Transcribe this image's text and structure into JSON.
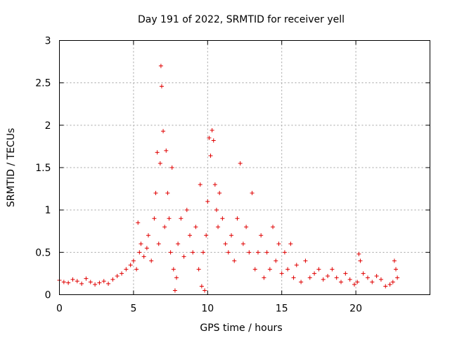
{
  "chart_data": {
    "type": "scatter",
    "title": "Day 191 of 2022, SRMTID for receiver yell",
    "xlabel": "GPS time / hours",
    "ylabel": "SRMTID / TECUs",
    "xlim": [
      0,
      25
    ],
    "ylim": [
      0,
      3
    ],
    "x_ticks": [
      0,
      5,
      10,
      15,
      20
    ],
    "x_tick_labels": [
      "0",
      "5",
      "10",
      "15",
      "20"
    ],
    "y_ticks": [
      0,
      0.5,
      1,
      1.5,
      2,
      2.5,
      3
    ],
    "y_tick_labels": [
      "0",
      "0.5",
      "1",
      "1.5",
      "2",
      "2.5",
      "3"
    ],
    "grid": true,
    "marker": "+",
    "series": [
      {
        "name": "SRMTID",
        "color": "#e00000",
        "x": [
          0.0,
          0.3,
          0.6,
          0.9,
          1.2,
          1.5,
          1.8,
          2.1,
          2.4,
          2.7,
          3.0,
          3.3,
          3.6,
          3.9,
          4.2,
          4.5,
          4.8,
          5.0,
          5.2,
          5.3,
          5.4,
          5.5,
          5.7,
          5.9,
          6.0,
          6.2,
          6.4,
          6.5,
          6.6,
          6.7,
          6.8,
          6.85,
          6.9,
          7.0,
          7.1,
          7.2,
          7.3,
          7.4,
          7.5,
          7.6,
          7.7,
          7.8,
          7.9,
          8.0,
          8.2,
          8.4,
          8.6,
          8.8,
          9.0,
          9.2,
          9.4,
          9.5,
          9.6,
          9.7,
          9.8,
          9.9,
          10.0,
          10.1,
          10.2,
          10.3,
          10.4,
          10.5,
          10.6,
          10.7,
          10.8,
          11.0,
          11.2,
          11.4,
          11.6,
          11.8,
          12.0,
          12.2,
          12.4,
          12.6,
          12.8,
          13.0,
          13.2,
          13.4,
          13.6,
          13.8,
          14.0,
          14.2,
          14.4,
          14.6,
          14.8,
          15.0,
          15.2,
          15.4,
          15.6,
          15.8,
          16.0,
          16.3,
          16.6,
          16.9,
          17.2,
          17.5,
          17.8,
          18.1,
          18.4,
          18.7,
          19.0,
          19.3,
          19.6,
          19.9,
          20.1,
          20.2,
          20.3,
          20.5,
          20.8,
          21.1,
          21.4,
          21.7,
          22.0,
          22.3,
          22.5,
          22.6,
          22.7,
          22.8
        ],
        "y": [
          0.17,
          0.15,
          0.14,
          0.18,
          0.16,
          0.13,
          0.19,
          0.15,
          0.12,
          0.14,
          0.16,
          0.13,
          0.18,
          0.22,
          0.25,
          0.3,
          0.35,
          0.4,
          0.3,
          0.85,
          0.5,
          0.6,
          0.45,
          0.55,
          0.7,
          0.4,
          0.9,
          1.2,
          1.68,
          0.6,
          1.55,
          2.7,
          2.46,
          1.93,
          0.8,
          1.7,
          1.2,
          0.9,
          0.5,
          1.5,
          0.3,
          0.05,
          0.2,
          0.6,
          0.9,
          0.45,
          1.0,
          0.7,
          0.5,
          0.8,
          0.3,
          1.3,
          0.1,
          0.5,
          0.05,
          0.7,
          1.1,
          1.85,
          1.64,
          1.94,
          1.82,
          1.3,
          1.0,
          0.8,
          1.2,
          0.9,
          0.6,
          0.5,
          0.7,
          0.4,
          0.9,
          1.55,
          0.6,
          0.8,
          0.5,
          1.2,
          0.3,
          0.5,
          0.7,
          0.2,
          0.5,
          0.3,
          0.8,
          0.4,
          0.6,
          0.25,
          0.5,
          0.3,
          0.6,
          0.2,
          0.35,
          0.15,
          0.4,
          0.2,
          0.25,
          0.3,
          0.18,
          0.22,
          0.3,
          0.2,
          0.15,
          0.25,
          0.18,
          0.12,
          0.15,
          0.48,
          0.4,
          0.25,
          0.2,
          0.15,
          0.22,
          0.18,
          0.1,
          0.12,
          0.15,
          0.4,
          0.3,
          0.2
        ]
      }
    ]
  }
}
